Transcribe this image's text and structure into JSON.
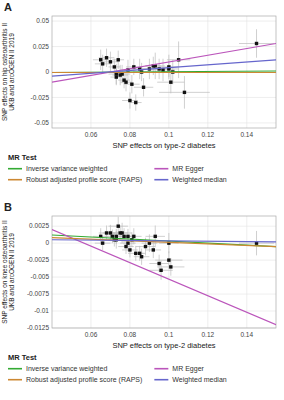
{
  "chart_data": [
    {
      "type": "scatter",
      "title": "A",
      "x_label": "SNP effects on type-2 diabetes",
      "y_label": "SNP effects on hip osteoarthritis II UKB and arcOGEN II 2019",
      "xlim": [
        0.04,
        0.155
      ],
      "ylim": [
        -0.055,
        0.055
      ],
      "xticks": [
        0.06,
        0.08,
        0.1,
        0.12,
        0.14
      ],
      "yticks": [
        -0.05,
        -0.025,
        0,
        0.025,
        0.05
      ],
      "grid": true,
      "legend": "bottom",
      "legend_title": "MR Test",
      "series": [
        {
          "type": "scatter",
          "marker": "square",
          "color": "#111111",
          "x": [
            0.065,
            0.066,
            0.068,
            0.07,
            0.072,
            0.073,
            0.073,
            0.074,
            0.075,
            0.076,
            0.077,
            0.078,
            0.079,
            0.08,
            0.081,
            0.082,
            0.083,
            0.085,
            0.086,
            0.087,
            0.09,
            0.092,
            0.093,
            0.095,
            0.097,
            0.1,
            0.1,
            0.101,
            0.102,
            0.105,
            0.108,
            0.145
          ],
          "values": [
            0.012,
            0.008,
            0.014,
            0.01,
            0.005,
            -0.005,
            -0.002,
            0.012,
            -0.003,
            -0.002,
            -0.008,
            -0.01,
            0.002,
            -0.028,
            -0.012,
            0.005,
            -0.03,
            0.003,
            0.0,
            -0.015,
            0.003,
            0.006,
            0.006,
            0.003,
            0.002,
            0.005,
            0.003,
            -0.01,
            0.0,
            0.012,
            -0.02,
            0.028
          ],
          "x_error": [
            0.004,
            0.004,
            0.004,
            0.004,
            0.003,
            0.003,
            0.004,
            0.003,
            0.004,
            0.004,
            0.003,
            0.003,
            0.004,
            0.004,
            0.004,
            0.004,
            0.003,
            0.004,
            0.004,
            0.005,
            0.004,
            0.004,
            0.005,
            0.005,
            0.006,
            0.005,
            0.005,
            0.007,
            0.006,
            0.006,
            0.013,
            0.009
          ],
          "y_error": [
            0.01,
            0.009,
            0.009,
            0.01,
            0.008,
            0.008,
            0.01,
            0.009,
            0.01,
            0.009,
            0.008,
            0.009,
            0.01,
            0.008,
            0.009,
            0.008,
            0.008,
            0.01,
            0.009,
            0.009,
            0.01,
            0.009,
            0.013,
            0.01,
            0.011,
            0.012,
            0.008,
            0.011,
            0.012,
            0.018,
            0.016,
            0.014
          ]
        },
        {
          "type": "line",
          "name": "Inverse variance weighted",
          "color": "#33aa33",
          "x": [
            0.04,
            0.155
          ],
          "values": [
            -0.0005,
            0.001
          ]
        },
        {
          "type": "line",
          "name": "MR Egger",
          "color": "#bb55bb",
          "x": [
            0.04,
            0.155
          ],
          "values": [
            -0.01,
            0.028
          ]
        },
        {
          "type": "line",
          "name": "Robust adjusted profile score (RAPS)",
          "color": "#cc8833",
          "x": [
            0.04,
            0.155
          ],
          "values": [
            -0.0005,
            -0.0005
          ]
        },
        {
          "type": "line",
          "name": "Weighted median",
          "color": "#6666cc",
          "x": [
            0.04,
            0.155
          ],
          "values": [
            -0.004,
            0.012
          ]
        }
      ]
    },
    {
      "type": "scatter",
      "title": "B",
      "x_label": "SNP effects on type-2 diabetes",
      "y_label": "SNP effects on knee osteoarthritis II UKB and arcOGEN II 2019",
      "xlim": [
        0.04,
        0.155
      ],
      "ylim": [
        -0.0125,
        0.004
      ],
      "xticks": [
        0.06,
        0.08,
        0.1,
        0.12,
        0.14
      ],
      "yticks": [
        -0.0125,
        -0.01,
        -0.0075,
        -0.005,
        -0.0025,
        0,
        0.0025
      ],
      "grid": true,
      "legend": "bottom",
      "legend_title": "MR Test",
      "series": [
        {
          "type": "scatter",
          "marker": "square",
          "color": "#111111",
          "x": [
            0.065,
            0.066,
            0.068,
            0.07,
            0.071,
            0.072,
            0.073,
            0.073,
            0.074,
            0.075,
            0.076,
            0.077,
            0.078,
            0.079,
            0.079,
            0.08,
            0.081,
            0.082,
            0.083,
            0.085,
            0.086,
            0.088,
            0.09,
            0.092,
            0.093,
            0.095,
            0.096,
            0.1,
            0.1,
            0.101,
            0.145
          ],
          "values": [
            0.001,
            0.0,
            0.0015,
            0.0015,
            0.001,
            0.0005,
            0.001,
            0.0005,
            0.0025,
            0.0015,
            0.0015,
            0.001,
            -0.0005,
            0.001,
            0.0,
            -0.001,
            0.0005,
            0.001,
            -0.0015,
            -0.0015,
            -0.002,
            -0.0005,
            0.0,
            -0.001,
            0.001,
            -0.003,
            -0.004,
            0.0,
            -0.0025,
            -0.0035,
            0.0
          ],
          "x_error": [
            0.004,
            0.004,
            0.004,
            0.004,
            0.004,
            0.003,
            0.003,
            0.004,
            0.005,
            0.004,
            0.005,
            0.004,
            0.004,
            0.004,
            0.004,
            0.004,
            0.004,
            0.004,
            0.004,
            0.003,
            0.004,
            0.005,
            0.004,
            0.004,
            0.005,
            0.005,
            0.006,
            0.005,
            0.007,
            0.007,
            0.009
          ],
          "y_error": [
            0.0012,
            0.001,
            0.0011,
            0.0012,
            0.001,
            0.001,
            0.0011,
            0.0013,
            0.0014,
            0.0011,
            0.0015,
            0.0012,
            0.0011,
            0.0011,
            0.0012,
            0.0011,
            0.0011,
            0.0012,
            0.0011,
            0.0011,
            0.0012,
            0.0013,
            0.0013,
            0.0012,
            0.0016,
            0.0013,
            0.0014,
            0.0015,
            0.0013,
            0.0013,
            0.0018
          ]
        },
        {
          "type": "line",
          "name": "Inverse variance weighted",
          "color": "#33aa33",
          "x": [
            0.04,
            0.155
          ],
          "values": [
            0.0012,
            -0.0005
          ]
        },
        {
          "type": "line",
          "name": "MR Egger",
          "color": "#bb55bb",
          "x": [
            0.04,
            0.155
          ],
          "values": [
            0.002,
            -0.012
          ]
        },
        {
          "type": "line",
          "name": "Robust adjusted profile score (RAPS)",
          "color": "#cc8833",
          "x": [
            0.04,
            0.155
          ],
          "values": [
            0.0008,
            -0.0005
          ]
        },
        {
          "type": "line",
          "name": "Weighted median",
          "color": "#6666cc",
          "x": [
            0.04,
            0.155
          ],
          "values": [
            0.0005,
            0.0002
          ]
        }
      ]
    }
  ]
}
